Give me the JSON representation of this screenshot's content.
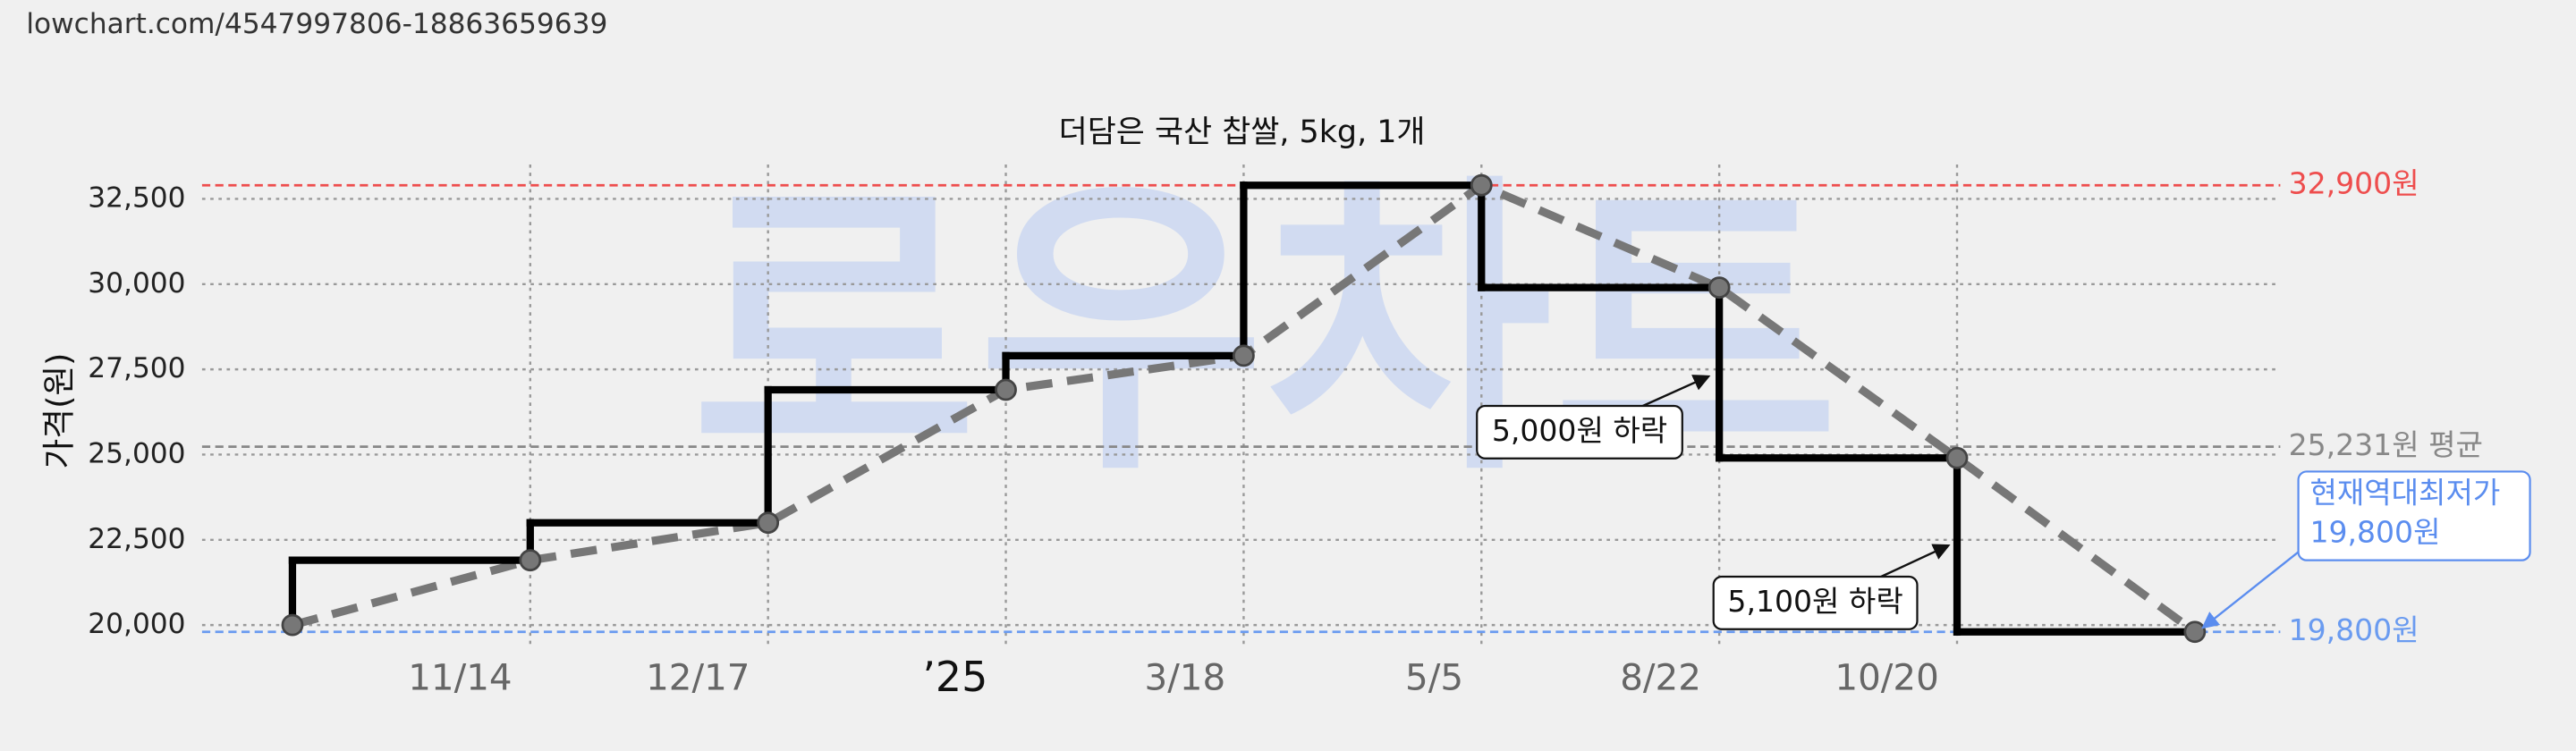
{
  "url": "lowchart.com/4547997806-18863659639",
  "chart_data": {
    "type": "step-price",
    "title": "더담은 국산 찹쌀, 5kg, 1개",
    "watermark": "로우차트",
    "y_label": "가격(원)",
    "categories": [
      null,
      "11/14",
      "12/17",
      "’25",
      "3/18",
      "5/5",
      "8/22",
      "10/20",
      null
    ],
    "values": [
      20000,
      21900,
      23000,
      26900,
      27900,
      32900,
      29900,
      24900,
      19800
    ],
    "step_color": "#000000",
    "line_color": "#777777",
    "ylim": [
      19300,
      33750
    ],
    "yticks": [
      {
        "value": 20000,
        "label": "20,000"
      },
      {
        "value": 22500,
        "label": "22,500"
      },
      {
        "value": 25000,
        "label": "25,000"
      },
      {
        "value": 27500,
        "label": "27,500"
      },
      {
        "value": 30000,
        "label": "30,000"
      },
      {
        "value": 32500,
        "label": "32,500"
      }
    ],
    "grid": true,
    "ref_lines": [
      {
        "value": 32900,
        "label": "32,900원",
        "color": "#ee4d4d"
      },
      {
        "value": 25231,
        "label": "25,231원 평균",
        "color": "#888888"
      },
      {
        "value": 19800,
        "label": "19,800원",
        "color": "#6a9bf0"
      }
    ],
    "annotations": [
      {
        "text": "5,000원 하락"
      },
      {
        "text": "5,100원 하락"
      },
      {
        "lines": [
          "현재역대최저가",
          "19,800원"
        ],
        "color": "#5b8def"
      }
    ]
  }
}
